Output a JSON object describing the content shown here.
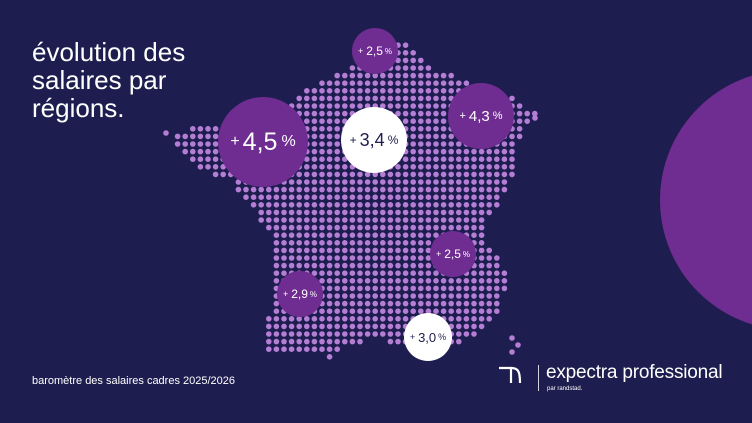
{
  "title_lines": [
    "évolution des",
    "salaires par",
    "régions."
  ],
  "bubbles": [
    {
      "name": "bubble-nord",
      "sign": "+",
      "value": "2,5",
      "unit": "%",
      "style": "purple"
    },
    {
      "name": "bubble-est",
      "sign": "+",
      "value": "4,3",
      "unit": "%",
      "style": "purple"
    },
    {
      "name": "bubble-ouest",
      "sign": "+",
      "value": "4,5",
      "unit": "%",
      "style": "purple"
    },
    {
      "name": "bubble-centre",
      "sign": "+",
      "value": "3,4",
      "unit": "%",
      "style": "white"
    },
    {
      "name": "bubble-rhone-alpes",
      "sign": "+",
      "value": "2,5",
      "unit": "%",
      "style": "purple"
    },
    {
      "name": "bubble-sud-ouest",
      "sign": "+",
      "value": "2,9",
      "unit": "%",
      "style": "purple"
    },
    {
      "name": "bubble-sud",
      "sign": "+",
      "value": "3,0",
      "unit": "%",
      "style": "white"
    }
  ],
  "footer": {
    "caption": "baromètre des salaires cadres 2025/2026"
  },
  "brand": {
    "name": "expectra professional",
    "subtitle": "par randstad."
  },
  "colors": {
    "background": "#1e1d4f",
    "accent_purple": "#6f2c91",
    "dot": "#b47ed4",
    "white": "#ffffff"
  }
}
